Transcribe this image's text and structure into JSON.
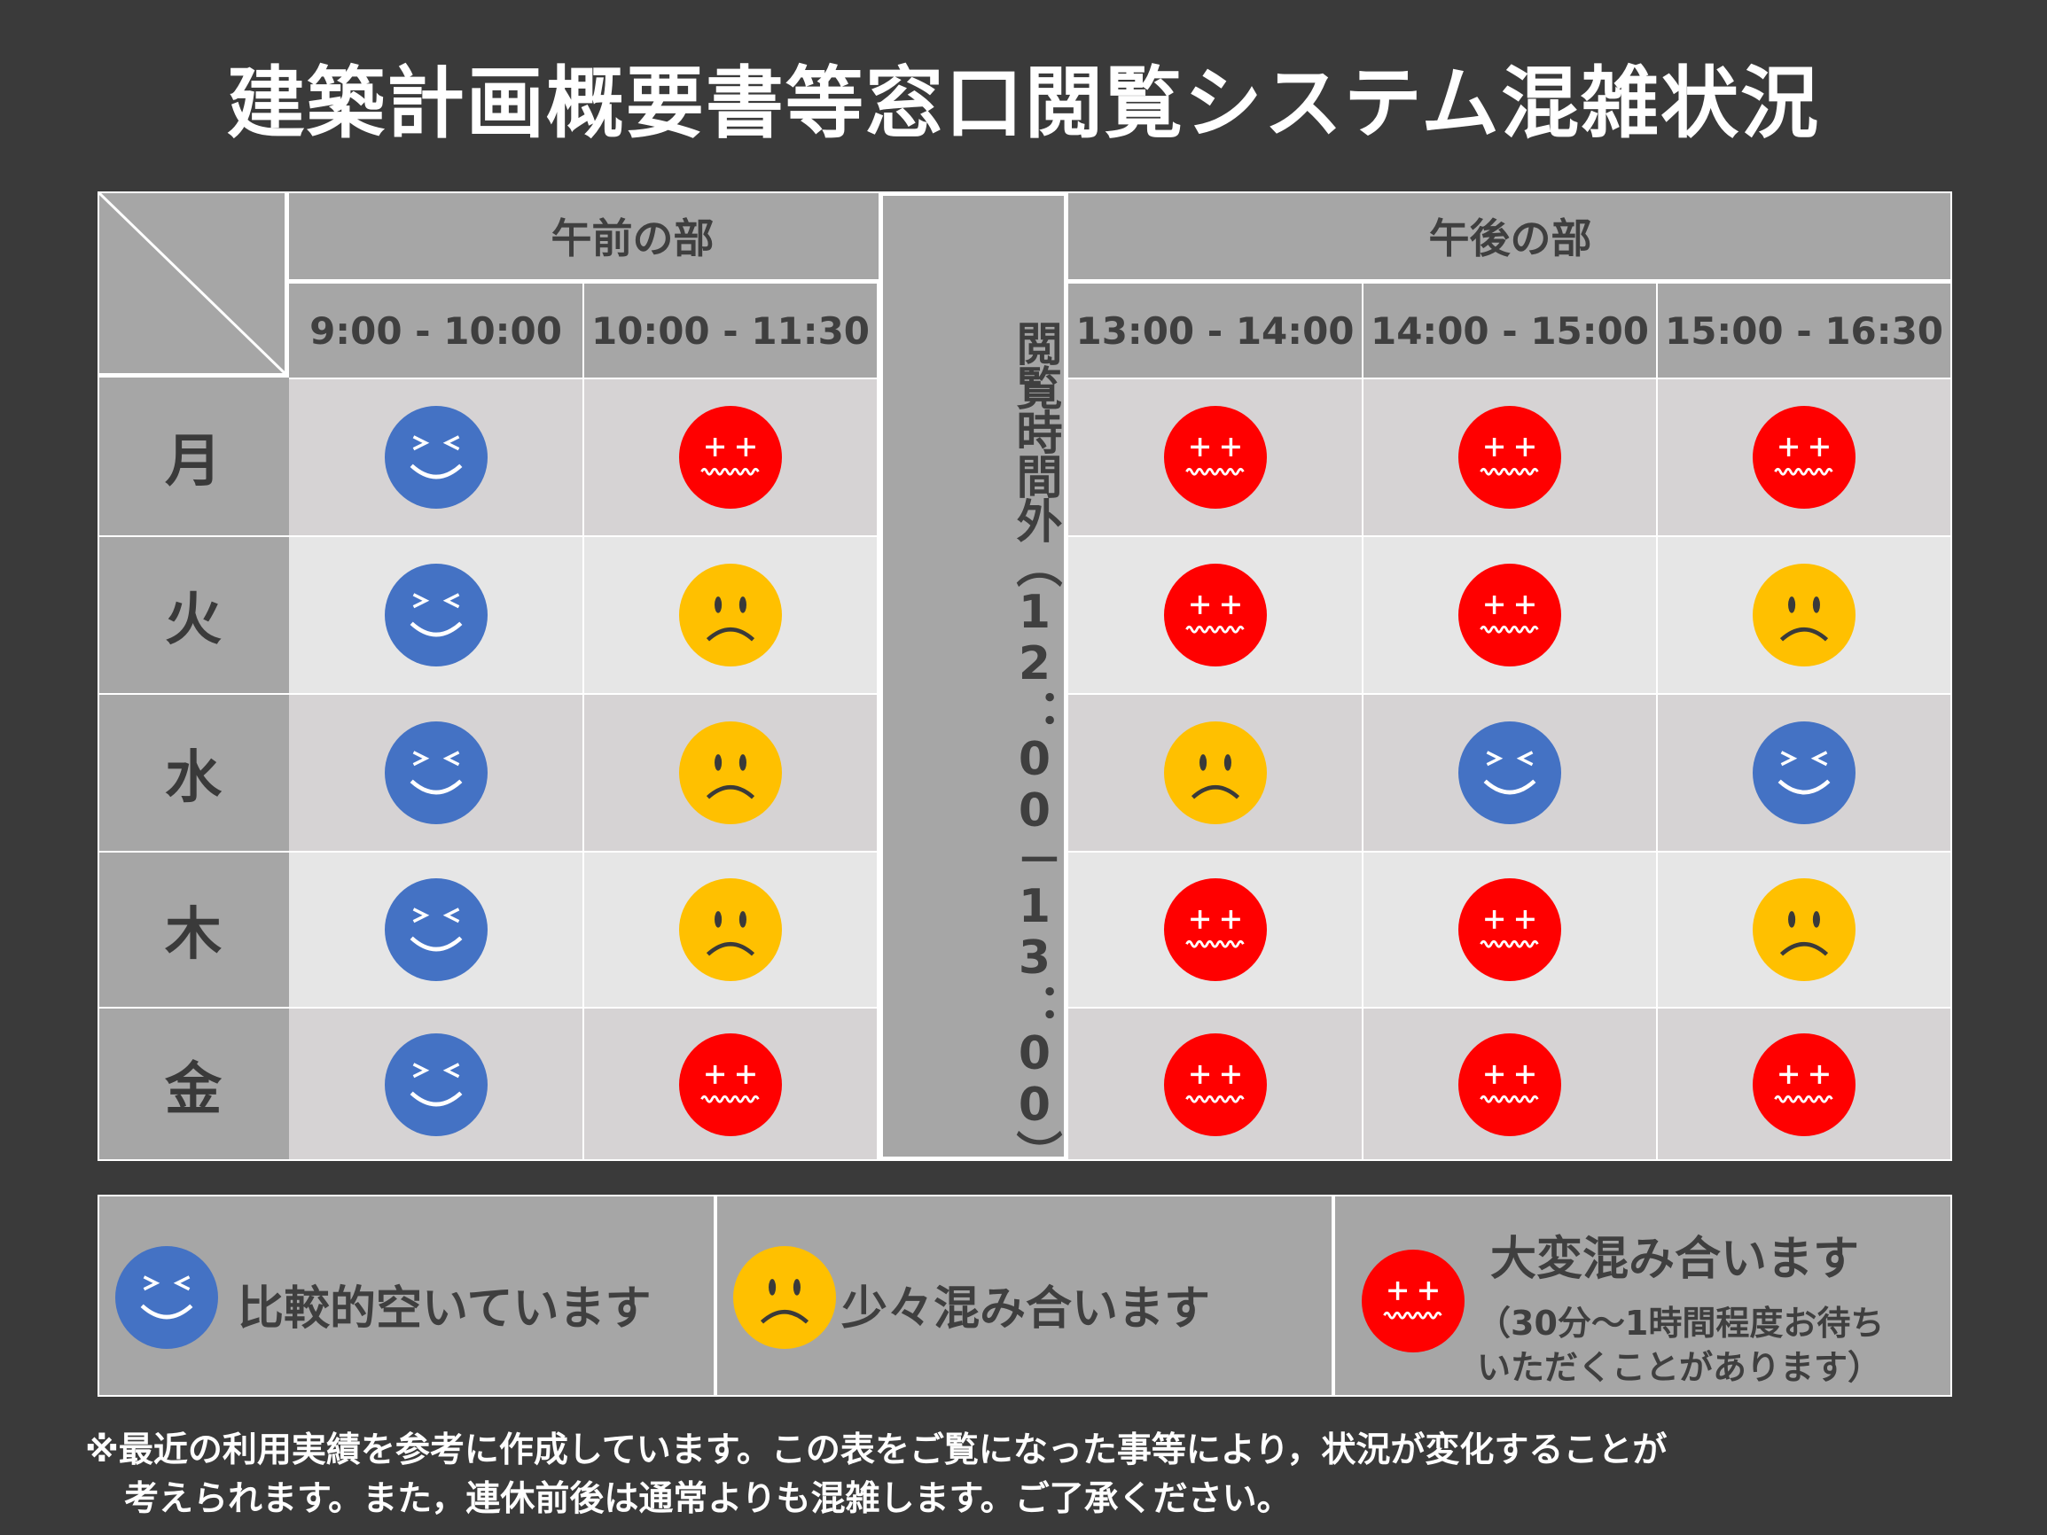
{
  "title": "建築計画概要書等窓口閲覧システム混雑状況",
  "sessions": {
    "morning": "午前の部",
    "afternoon": "午後の部"
  },
  "lunch_label": "閲覧時間外（12：00－13：00）",
  "slots": [
    "9:00 - 10:00",
    "10:00 - 11:30",
    "13:00 - 14:00",
    "14:00 - 15:00",
    "15:00 - 16:30"
  ],
  "rows": [
    {
      "day": "月",
      "levels": [
        "low",
        "high",
        "high",
        "high",
        "high"
      ]
    },
    {
      "day": "火",
      "levels": [
        "low",
        "medium",
        "high",
        "high",
        "medium"
      ]
    },
    {
      "day": "水",
      "levels": [
        "low",
        "medium",
        "medium",
        "low",
        "low"
      ]
    },
    {
      "day": "木",
      "levels": [
        "low",
        "medium",
        "high",
        "high",
        "medium"
      ]
    },
    {
      "day": "金",
      "levels": [
        "low",
        "high",
        "high",
        "high",
        "high"
      ]
    }
  ],
  "legend": {
    "low": "比較的空いています",
    "medium": "少々混み合います",
    "high": "大変混み合います",
    "high_note_1": "（30分～1時間程度お待ち",
    "high_note_2": "いただくことがあります）"
  },
  "colors": {
    "low": "#4472c4",
    "medium": "#ffc000",
    "high": "#ff0000",
    "background": "#3a3a3a",
    "header": "#a6a6a6"
  },
  "icons": {
    "low": "happy-face-icon",
    "medium": "sad-face-icon",
    "high": "angry-face-icon"
  },
  "notes": [
    "※最近の利用実績を参考に作成しています。この表をご覧になった事等により，状況が変化することが",
    "考えられます。また，連休前後は通常よりも混雑します。ご了承ください。"
  ]
}
